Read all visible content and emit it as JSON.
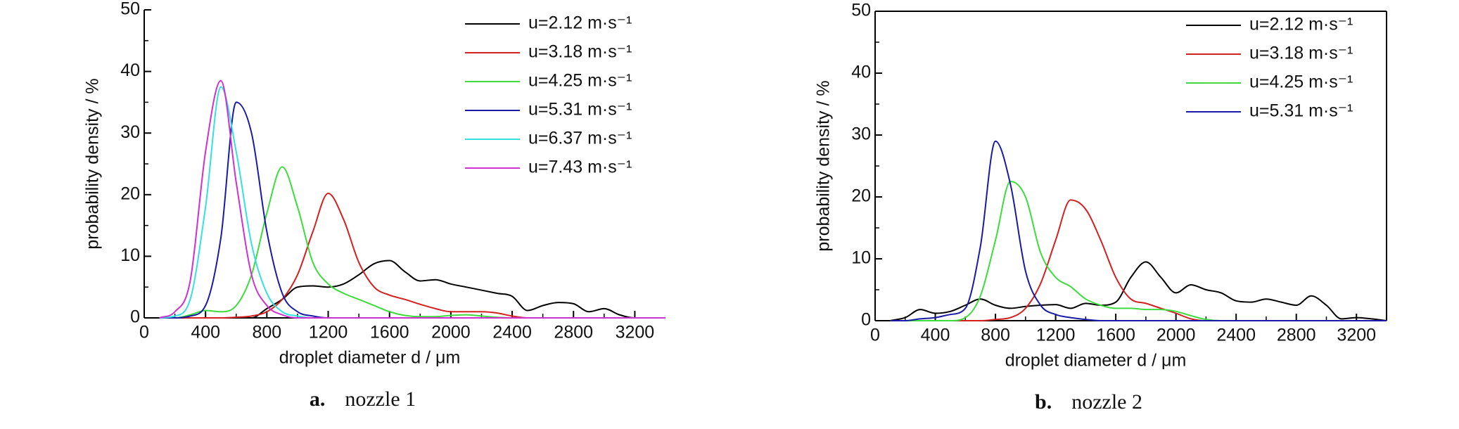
{
  "chart_data": [
    {
      "type": "line",
      "caption_label": "a.",
      "caption": "nozzle 1",
      "xlabel": "droplet diameter d / μm",
      "ylabel": "probability density / %",
      "xlim": [
        0,
        3400
      ],
      "ylim": [
        0,
        50
      ],
      "xticks": [
        0,
        400,
        800,
        1200,
        1600,
        2000,
        2400,
        2800,
        3200
      ],
      "yticks": [
        0,
        10,
        20,
        30,
        40,
        50
      ],
      "box": false,
      "legend": "top-right",
      "x": [
        100,
        200,
        300,
        400,
        500,
        600,
        700,
        800,
        900,
        1000,
        1100,
        1200,
        1300,
        1400,
        1500,
        1600,
        1700,
        1800,
        1900,
        2000,
        2100,
        2200,
        2300,
        2400,
        2500,
        2600,
        2700,
        2800,
        2900,
        3000,
        3100,
        3200,
        3300,
        3400
      ],
      "series": [
        {
          "name": "u=2.12 m·s⁻¹",
          "color": "#000000",
          "values": [
            0,
            0,
            0,
            0,
            0,
            0,
            0,
            1.5,
            3,
            5,
            5.2,
            5,
            5.5,
            7,
            8.8,
            9.3,
            7.5,
            6,
            6.2,
            5.5,
            5,
            4.5,
            4,
            3.5,
            1.2,
            2,
            2.5,
            2.3,
            1,
            1.5,
            0.5,
            0,
            0,
            0
          ]
        },
        {
          "name": "u=3.18 m·s⁻¹",
          "color": "#d42020",
          "values": [
            0,
            0,
            0,
            0,
            0,
            0.1,
            0.3,
            1,
            3,
            7,
            14,
            20.2,
            16,
            9,
            5,
            3.7,
            3,
            2.2,
            1.5,
            1,
            1,
            1,
            0.8,
            0.3,
            0,
            0,
            0,
            0,
            0,
            0,
            0,
            0,
            0,
            0
          ]
        },
        {
          "name": "u=4.25 m·s⁻¹",
          "color": "#3ddc3d",
          "values": [
            0,
            0,
            0.5,
            1.2,
            1,
            2,
            7,
            17,
            24.5,
            18,
            9,
            5.5,
            4,
            3,
            2,
            1,
            0.4,
            0.2,
            0.2,
            0.4,
            0.5,
            0.3,
            0.1,
            0,
            0,
            0,
            0,
            0,
            0,
            0,
            0,
            0,
            0,
            0
          ]
        },
        {
          "name": "u=5.31 m·s⁻¹",
          "color": "#1a1aa8",
          "values": [
            0,
            0,
            0.3,
            2,
            13,
            35,
            30,
            14,
            4,
            1,
            0.3,
            0,
            0,
            0,
            0,
            0,
            0,
            0,
            0,
            0,
            0,
            0,
            0,
            0,
            0,
            0,
            0,
            0,
            0,
            0,
            0,
            0,
            0,
            0
          ]
        },
        {
          "name": "u=6.37 m·s⁻¹",
          "color": "#35e0e0",
          "values": [
            0,
            0.3,
            3,
            18,
            37.5,
            27,
            12,
            4,
            1,
            0.3,
            0,
            0,
            0,
            0,
            0,
            0,
            0,
            0,
            0,
            0,
            0,
            0,
            0,
            0,
            0,
            0,
            0,
            0,
            0,
            0,
            0,
            0,
            0,
            0
          ]
        },
        {
          "name": "u=7.43 m·s⁻¹",
          "color": "#d030d0",
          "values": [
            0,
            1,
            6,
            27,
            38.5,
            22,
            7,
            2,
            0.5,
            0,
            0,
            0,
            0,
            0,
            0,
            0,
            0,
            0,
            0,
            0,
            0,
            0,
            0,
            0,
            0,
            0,
            0,
            0,
            0,
            0,
            0,
            0,
            0,
            0
          ]
        }
      ]
    },
    {
      "type": "line",
      "caption_label": "b.",
      "caption": "nozzle 2",
      "xlabel": "droplet diameter d / μm",
      "ylabel": "probability density / %",
      "xlim": [
        0,
        3400
      ],
      "ylim": [
        0,
        50
      ],
      "xticks": [
        0,
        400,
        800,
        1200,
        1600,
        2000,
        2400,
        2800,
        3200
      ],
      "yticks": [
        0,
        10,
        20,
        30,
        40,
        50
      ],
      "box": true,
      "legend": "top-right",
      "x": [
        100,
        200,
        300,
        400,
        500,
        600,
        700,
        800,
        900,
        1000,
        1100,
        1200,
        1300,
        1400,
        1500,
        1600,
        1700,
        1800,
        1900,
        2000,
        2100,
        2200,
        2300,
        2400,
        2500,
        2600,
        2700,
        2800,
        2900,
        3000,
        3100,
        3200,
        3300,
        3400
      ],
      "series": [
        {
          "name": "u=2.12 m·s⁻¹",
          "color": "#000000",
          "values": [
            0,
            0.5,
            1.8,
            1.2,
            1.5,
            2.5,
            3.5,
            2.5,
            2,
            2.3,
            2.5,
            2.6,
            2,
            2.8,
            2.5,
            3,
            7,
            9.5,
            7,
            4.5,
            5.8,
            5,
            4.5,
            3.2,
            3,
            3.5,
            3,
            2.5,
            4,
            2.5,
            0.3,
            0.5,
            0.3,
            0
          ]
        },
        {
          "name": "u=3.18 m·s⁻¹",
          "color": "#d42020",
          "values": [
            0,
            0,
            0,
            0,
            0,
            0,
            0,
            0.2,
            0.5,
            2,
            6,
            13,
            19.5,
            18,
            13,
            7,
            3.5,
            2.8,
            2,
            1.2,
            0.3,
            0,
            0,
            0,
            0,
            0,
            0,
            0,
            0,
            0,
            0,
            0,
            0,
            0
          ]
        },
        {
          "name": "u=4.25 m·s⁻¹",
          "color": "#3ddc3d",
          "values": [
            0,
            0,
            0,
            0,
            0,
            0.5,
            4,
            13,
            22.5,
            20,
            11,
            7,
            5.5,
            3.5,
            2.5,
            2,
            2,
            1.8,
            1.8,
            1.5,
            0.8,
            0.2,
            0,
            0,
            0,
            0,
            0,
            0,
            0,
            0,
            0,
            0,
            0,
            0
          ]
        },
        {
          "name": "u=5.31 m·s⁻¹",
          "color": "#1a1aa8",
          "values": [
            0,
            0,
            0.3,
            0.5,
            1,
            2,
            12,
            29,
            22,
            8,
            2.5,
            1,
            0.5,
            0.2,
            0,
            0,
            0,
            0,
            0,
            0,
            0,
            0,
            0,
            0,
            0,
            0,
            0,
            0,
            0,
            0,
            0,
            0,
            0,
            0
          ]
        }
      ]
    }
  ]
}
